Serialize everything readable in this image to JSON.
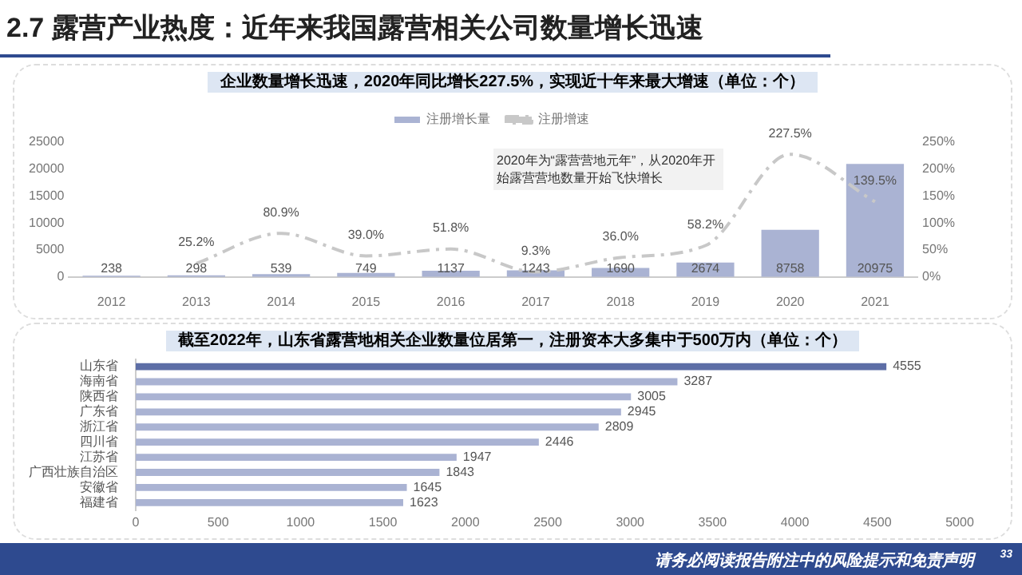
{
  "chart_data": [
    {
      "type": "bar",
      "title": "2.7 露营产业热度：近年来我国露营相关公司数量增长迅速",
      "subtitle": "企业数量增长迅速，2020年同比增长227.5%，实现近十年来最大增速（单位：个）",
      "categories": [
        "2012",
        "2013",
        "2014",
        "2015",
        "2016",
        "2017",
        "2018",
        "2019",
        "2020",
        "2021"
      ],
      "series": [
        {
          "name": "注册增长量",
          "type": "bar",
          "color": "#aab3d3",
          "values": [
            238,
            298,
            539,
            749,
            1137,
            1243,
            1690,
            2674,
            8758,
            20975
          ],
          "value_labels": [
            "238",
            "298",
            "539",
            "749",
            "1137",
            "1243",
            "1690",
            "2674",
            "8758",
            "20975"
          ]
        },
        {
          "name": "注册增速",
          "type": "line",
          "axis": "y2",
          "color": "#c8c8c8",
          "line_style": "dashed",
          "marker": "none",
          "values": [
            null,
            25.2,
            80.9,
            39.0,
            51.8,
            9.3,
            36.0,
            58.2,
            227.5,
            139.5
          ],
          "value_labels": [
            null,
            "25.2%",
            "80.9%",
            "39.0%",
            "51.8%",
            "9.3%",
            "36.0%",
            "58.2%",
            "227.5%",
            "139.5%"
          ]
        }
      ],
      "ylim": [
        0,
        25000
      ],
      "yticks": [
        0,
        5000,
        10000,
        15000,
        20000,
        25000
      ],
      "y2lim": [
        0,
        250
      ],
      "y2ticks": [
        {
          "value": 0,
          "label": "0%"
        },
        {
          "value": 50,
          "label": "50%"
        },
        {
          "value": 100,
          "label": "100%"
        },
        {
          "value": 150,
          "label": "150%"
        },
        {
          "value": 200,
          "label": "200%"
        },
        {
          "value": 250,
          "label": "250%"
        }
      ],
      "legend": "top",
      "grid": false,
      "annotations": [
        "2020年为“露营营地元年”，从2020年开始露营营地数量开始飞快增长"
      ]
    },
    {
      "type": "bar",
      "orientation": "horizontal",
      "title": "截至2022年，山东省露营地相关企业数量位居第一，注册资本大多集中于500万内（单位：个）",
      "categories": [
        "山东省",
        "海南省",
        "陕西省",
        "广东省",
        "浙江省",
        "四川省",
        "江苏省",
        "广西壮族自治区",
        "安徽省",
        "福建省"
      ],
      "values": [
        4555,
        3287,
        3005,
        2945,
        2809,
        2446,
        1947,
        1843,
        1645,
        1623
      ],
      "colors": [
        "#5d6ea6",
        "#aab3d3",
        "#aab3d3",
        "#aab3d3",
        "#aab3d3",
        "#aab3d3",
        "#aab3d3",
        "#aab3d3",
        "#aab3d3",
        "#aab3d3"
      ],
      "xlim": [
        0,
        5000
      ],
      "xticks": [
        0,
        500,
        1000,
        1500,
        2000,
        2500,
        3000,
        3500,
        4000,
        4500,
        5000
      ],
      "data_labels": true,
      "grid": false,
      "annotations": [
        "请务必阅读报告附注中的风险提示和免责声明",
        "33"
      ]
    }
  ]
}
